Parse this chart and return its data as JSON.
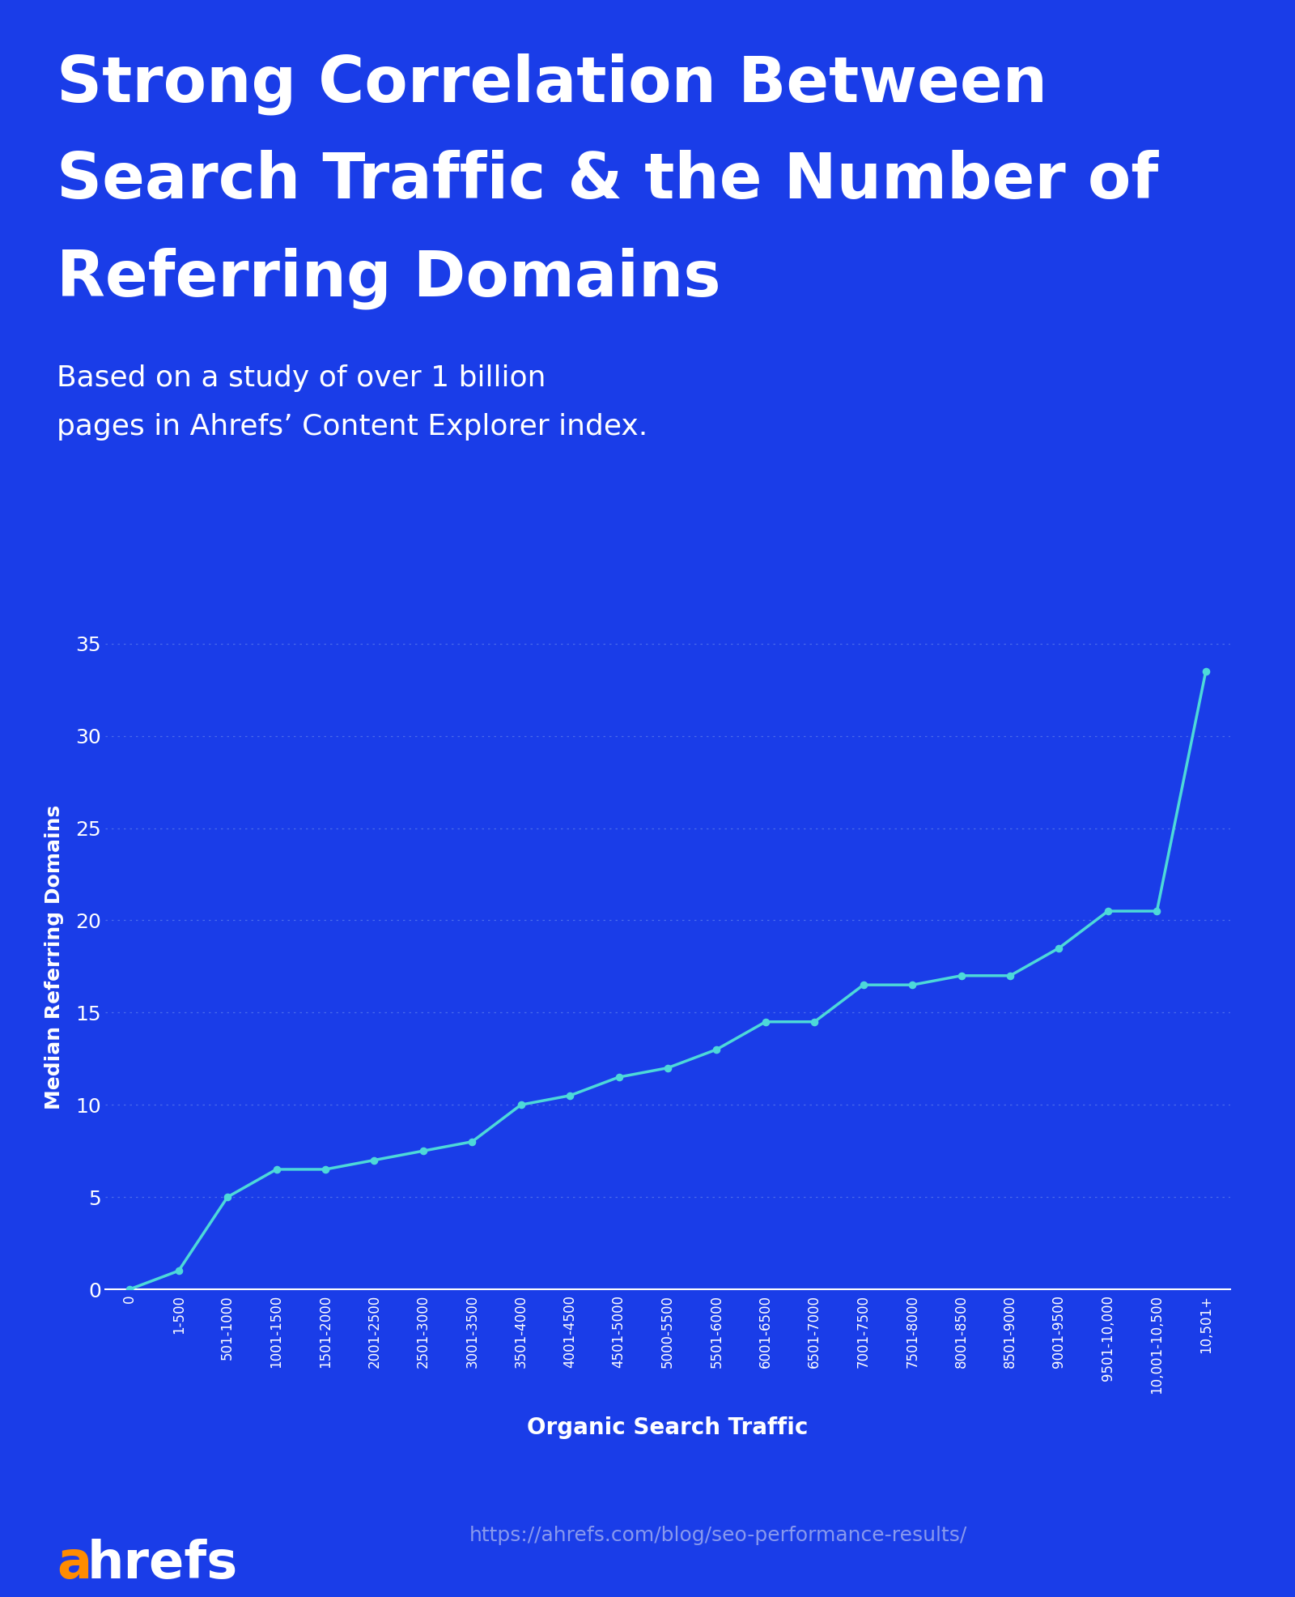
{
  "title_line1": "Strong Correlation Between",
  "title_line2": "Search Traffic & the Number of",
  "title_line3": "Referring Domains",
  "subtitle_line1": "Based on a study of over 1 billion",
  "subtitle_line2": "pages in Ahrefs’ Content Explorer index.",
  "xlabel": "Organic Search Traffic",
  "ylabel": "Median Referring Domains",
  "background_color": "#1a3de8",
  "line_color": "#4dd9d9",
  "dot_color": "#4dd9d9",
  "text_color": "#ffffff",
  "grid_color": "#4466ee",
  "axis_color": "#ffffff",
  "categories": [
    "0",
    "1-500",
    "501-1000",
    "1001-1500",
    "1501-2000",
    "2001-2500",
    "2501-3000",
    "3001-3500",
    "3501-4000",
    "4001-4500",
    "4501-5000",
    "5000-5500",
    "5501-6000",
    "6001-6500",
    "6501-7000",
    "7001-7500",
    "7501-8000",
    "8001-8500",
    "8501-9000",
    "9001-9500",
    "9501-10,000",
    "10,001-10,500",
    "10,501+"
  ],
  "values": [
    0,
    1,
    5,
    6.5,
    6.5,
    7,
    7.5,
    8,
    10,
    10.5,
    11.5,
    12,
    13,
    14.5,
    14.5,
    16.5,
    16.5,
    17,
    17,
    18.5,
    20.5,
    20.5,
    33.5
  ],
  "ylim": [
    0,
    36
  ],
  "yticks": [
    0,
    5,
    10,
    15,
    20,
    25,
    30,
    35
  ],
  "ahrefs_color_a": "#ff8c00",
  "ahrefs_color_rest": "#ffffff",
  "url_text": "https://ahrefs.com/blog/seo-performance-results/",
  "url_color": "#8899ee",
  "title_fontsize": 56,
  "subtitle_fontsize": 26,
  "ylabel_fontsize": 18,
  "xlabel_fontsize": 20,
  "tick_fontsize": 12,
  "ytick_fontsize": 18
}
